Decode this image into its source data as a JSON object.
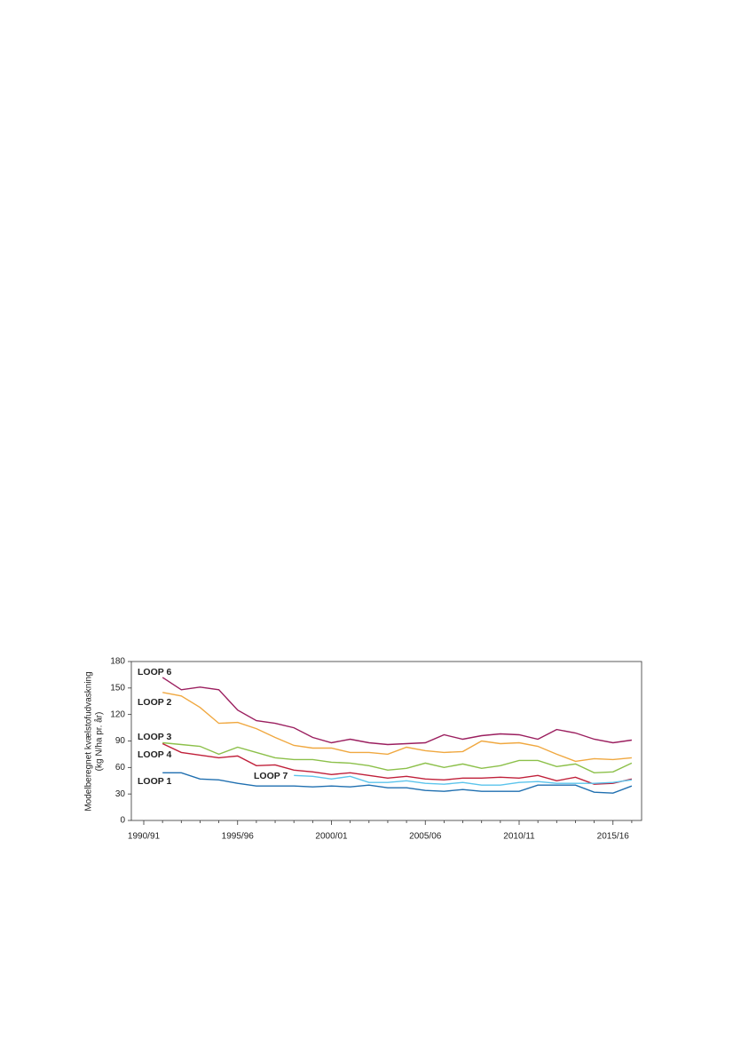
{
  "chart_data": {
    "type": "line",
    "y_label": [
      "Modelberegnet kvælstofudvaskning",
      "(kg N/ha pr. år)"
    ],
    "categories": [
      "1990/91",
      null,
      null,
      null,
      null,
      "1995/96",
      null,
      null,
      null,
      null,
      "2000/01",
      null,
      null,
      null,
      null,
      "2005/06",
      null,
      null,
      null,
      null,
      "2010/11",
      null,
      null,
      null,
      null,
      "2015/16",
      null
    ],
    "series": [
      {
        "name": "LOOP 6",
        "color": "#9b1f5f",
        "values": [
          null,
          162,
          148,
          151,
          148,
          125,
          113,
          110,
          105,
          94,
          88,
          92,
          88,
          86,
          87,
          88,
          97,
          92,
          96,
          98,
          97,
          92,
          103,
          99,
          92,
          88,
          91
        ]
      },
      {
        "name": "LOOP 2",
        "color": "#f0a840",
        "values": [
          null,
          145,
          141,
          128,
          110,
          111,
          104,
          94,
          85,
          82,
          82,
          77,
          77,
          75,
          83,
          79,
          77,
          78,
          90,
          87,
          88,
          84,
          75,
          67,
          70,
          69,
          71
        ]
      },
      {
        "name": "LOOP 3",
        "color": "#8cc04a",
        "values": [
          null,
          88,
          86,
          84,
          75,
          83,
          77,
          71,
          69,
          69,
          66,
          65,
          62,
          57,
          59,
          65,
          60,
          64,
          59,
          62,
          68,
          68,
          61,
          64,
          54,
          55,
          65
        ]
      },
      {
        "name": "LOOP 4",
        "color": "#c0203a",
        "values": [
          null,
          87,
          77,
          74,
          71,
          73,
          62,
          63,
          57,
          55,
          52,
          54,
          51,
          48,
          50,
          47,
          46,
          48,
          48,
          49,
          48,
          51,
          45,
          49,
          41,
          42,
          47
        ]
      },
      {
        "name": "LOOP 7",
        "color": "#5bc4ec",
        "values": [
          null,
          null,
          null,
          null,
          null,
          null,
          null,
          null,
          51,
          50,
          47,
          50,
          43,
          43,
          45,
          42,
          41,
          43,
          40,
          40,
          43,
          44,
          42,
          42,
          42,
          43,
          46
        ]
      },
      {
        "name": "LOOP 1",
        "color": "#1f6fb0",
        "values": [
          null,
          54,
          54,
          47,
          46,
          42,
          39,
          39,
          39,
          38,
          39,
          38,
          40,
          37,
          37,
          34,
          33,
          35,
          33,
          33,
          33,
          40,
          40,
          40,
          32,
          31,
          39
        ]
      }
    ],
    "ylim": [
      0,
      180
    ],
    "yticks": [
      0,
      30,
      60,
      90,
      120,
      150,
      180
    ]
  }
}
